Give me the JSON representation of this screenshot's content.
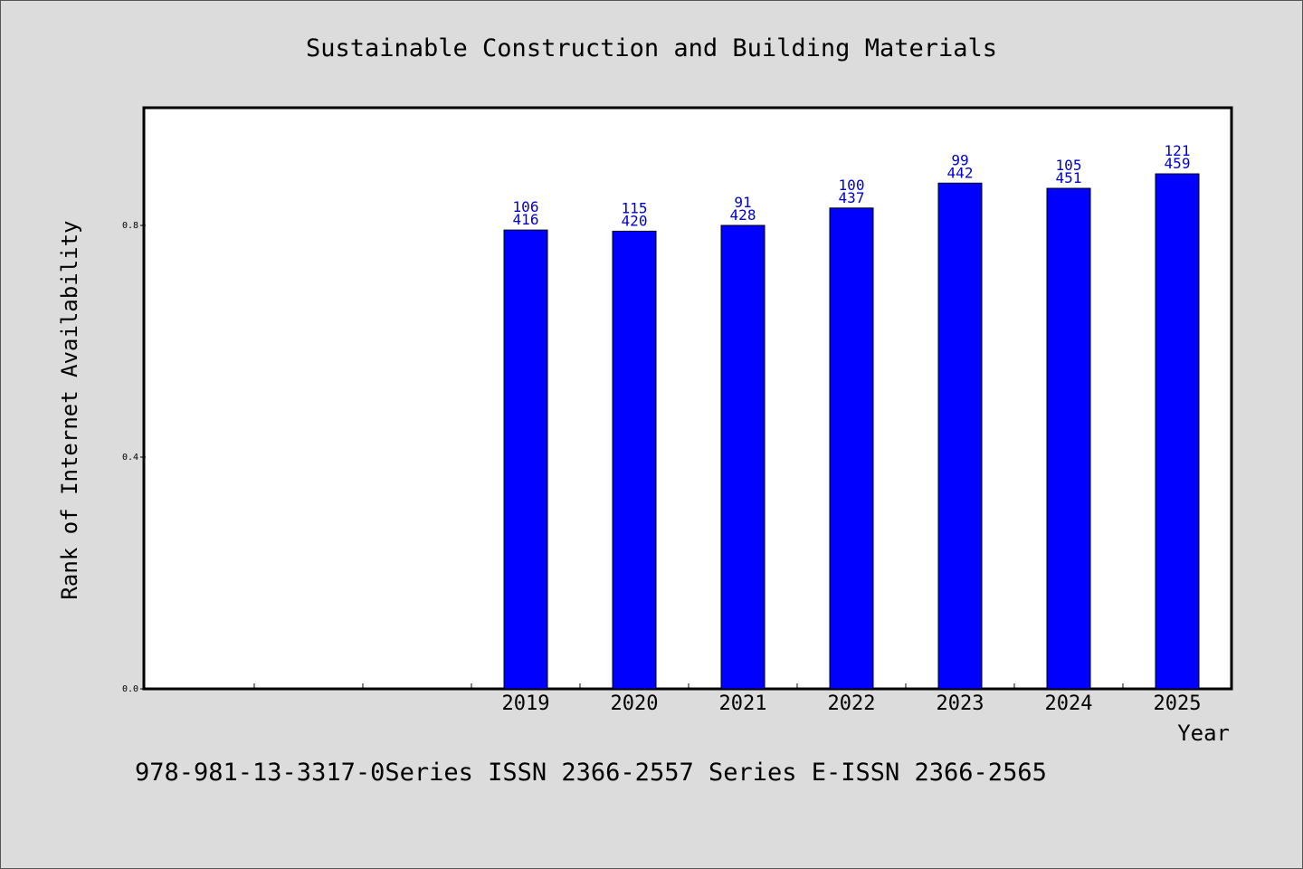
{
  "chart_data": {
    "type": "bar",
    "title": "Sustainable Construction and Building Materials",
    "xlabel": "Year",
    "ylabel": "Rank of Internet Availability",
    "categories": [
      "",
      "",
      "",
      "2019",
      "2020",
      "2021",
      "2022",
      "2023",
      "2024",
      "2025"
    ],
    "values": [
      null,
      null,
      null,
      0.792,
      0.79,
      0.8,
      0.83,
      0.873,
      0.864,
      0.889
    ],
    "annotations_top": [
      "",
      "",
      "",
      "106",
      "115",
      "91",
      "100",
      "99",
      "105",
      "121"
    ],
    "annotations_bottom": [
      "",
      "",
      "",
      "416",
      "420",
      "428",
      "437",
      "442",
      "451",
      "459"
    ],
    "yticks": [
      "0.0",
      "0.4",
      "0.8"
    ],
    "ytick_values": [
      0,
      0.4,
      0.8
    ],
    "ylim": [
      0,
      1.0
    ],
    "grid": false,
    "bar_color": "#0000ff",
    "label_color": "#0000cc"
  },
  "footer": "978-981-13-3317-0Series ISSN 2366-2557 Series E-ISSN 2366-2565"
}
